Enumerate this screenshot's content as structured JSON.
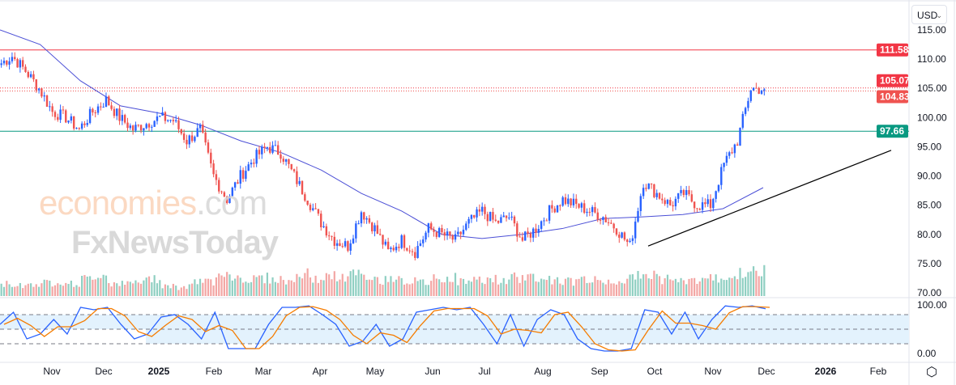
{
  "currency_selector": {
    "value": "USD"
  },
  "watermark": {
    "line1": "economies",
    "line1_suffix": ".com",
    "line2": "FxNewsToday"
  },
  "colors": {
    "up": "#2962ff",
    "down": "#ef5350",
    "vol_up": "#8fcfc2",
    "vol_down": "#f3a6a4",
    "ma": "#4b4fd6",
    "resistance": "#f23645",
    "support": "#089981",
    "stoch_k": "#2962ff",
    "stoch_d": "#f57c00",
    "trendline": "#000000",
    "band": "#e3f2fd"
  },
  "chart_data": {
    "type": "candlestick",
    "price_axis": {
      "ylim": [
        70,
        115
      ],
      "ticks": [
        "115.00",
        "110.00",
        "105.00",
        "100.00",
        "95.00",
        "90.00",
        "85.00",
        "80.00",
        "75.00",
        "70.00"
      ]
    },
    "time_axis": {
      "ticks": [
        "Nov",
        "Dec",
        "2025",
        "Feb",
        "Mar",
        "Apr",
        "May",
        "Jun",
        "Jul",
        "Aug",
        "Sep",
        "Oct",
        "Nov",
        "Dec",
        "2026",
        "Feb"
      ]
    },
    "weekly_closes": [
      109,
      110.5,
      108,
      105,
      101,
      100,
      98,
      101,
      103,
      100,
      98,
      99,
      100,
      99.5,
      96,
      98,
      90,
      86,
      90,
      93,
      95,
      94,
      90,
      86,
      82,
      79,
      78,
      84,
      81,
      77,
      79,
      77,
      81,
      80,
      79,
      82,
      84,
      82,
      83,
      79,
      81,
      84,
      86,
      85,
      84,
      83,
      81,
      78,
      89,
      87,
      85,
      87,
      85,
      85,
      92,
      96,
      105,
      104.83
    ],
    "moving_average": [
      115,
      112.5,
      106.3,
      102,
      100.7,
      98.7,
      96,
      94,
      91,
      87,
      84,
      80,
      79.3,
      80,
      81,
      82.7,
      83,
      83.4,
      84.4,
      88
    ],
    "volume_relative": [
      0.5,
      0.45,
      0.5,
      0.55,
      0.6,
      0.5,
      0.7,
      0.9,
      0.55,
      0.5,
      0.6,
      0.75,
      0.45,
      0.35,
      0.55,
      0.6,
      1.0,
      0.8,
      0.7,
      0.75,
      0.7,
      0.6,
      0.9,
      0.7,
      0.8,
      0.75,
      0.9,
      0.7,
      0.65,
      0.8,
      0.6,
      0.55,
      0.7,
      0.75,
      0.6,
      0.65,
      0.7,
      0.6,
      0.75,
      0.8,
      0.7,
      0.65,
      0.6,
      0.7,
      0.65,
      0.6,
      0.7,
      0.8,
      0.9,
      0.7,
      0.6,
      0.65,
      0.7,
      0.75,
      0.85,
      0.9,
      1.0,
      0.6
    ],
    "horizontal_levels": [
      {
        "value": 111.58,
        "label": "111.58",
        "style": "solid",
        "color": "#f23645"
      },
      {
        "value": 105.07,
        "label": "105.07",
        "style": "dotted",
        "color": "#f23645"
      },
      {
        "value": 104.83,
        "label": "104.83",
        "style": "last-price",
        "color": "#ef5350"
      },
      {
        "value": 97.66,
        "label": "97.66",
        "style": "solid",
        "color": "#089981"
      }
    ],
    "trendline": {
      "from": {
        "date": "Oct",
        "price": 78
      },
      "to": {
        "date": "Feb 2026",
        "price": 94.4
      }
    },
    "stochastic": {
      "ylim": [
        0,
        100
      ],
      "ticks": [
        "100.00",
        "0.00"
      ],
      "levels": [
        80,
        50,
        20
      ],
      "k": [
        60,
        85,
        30,
        40,
        70,
        40,
        95,
        90,
        95,
        60,
        30,
        40,
        75,
        80,
        60,
        30,
        85,
        10,
        10,
        10,
        60,
        95,
        95,
        98,
        80,
        60,
        15,
        25,
        60,
        15,
        30,
        85,
        90,
        95,
        90,
        95,
        60,
        20,
        80,
        15,
        70,
        90,
        80,
        30,
        10,
        5,
        5,
        10,
        90,
        85,
        40,
        85,
        30,
        70,
        98,
        95,
        98,
        92
      ]
    }
  }
}
